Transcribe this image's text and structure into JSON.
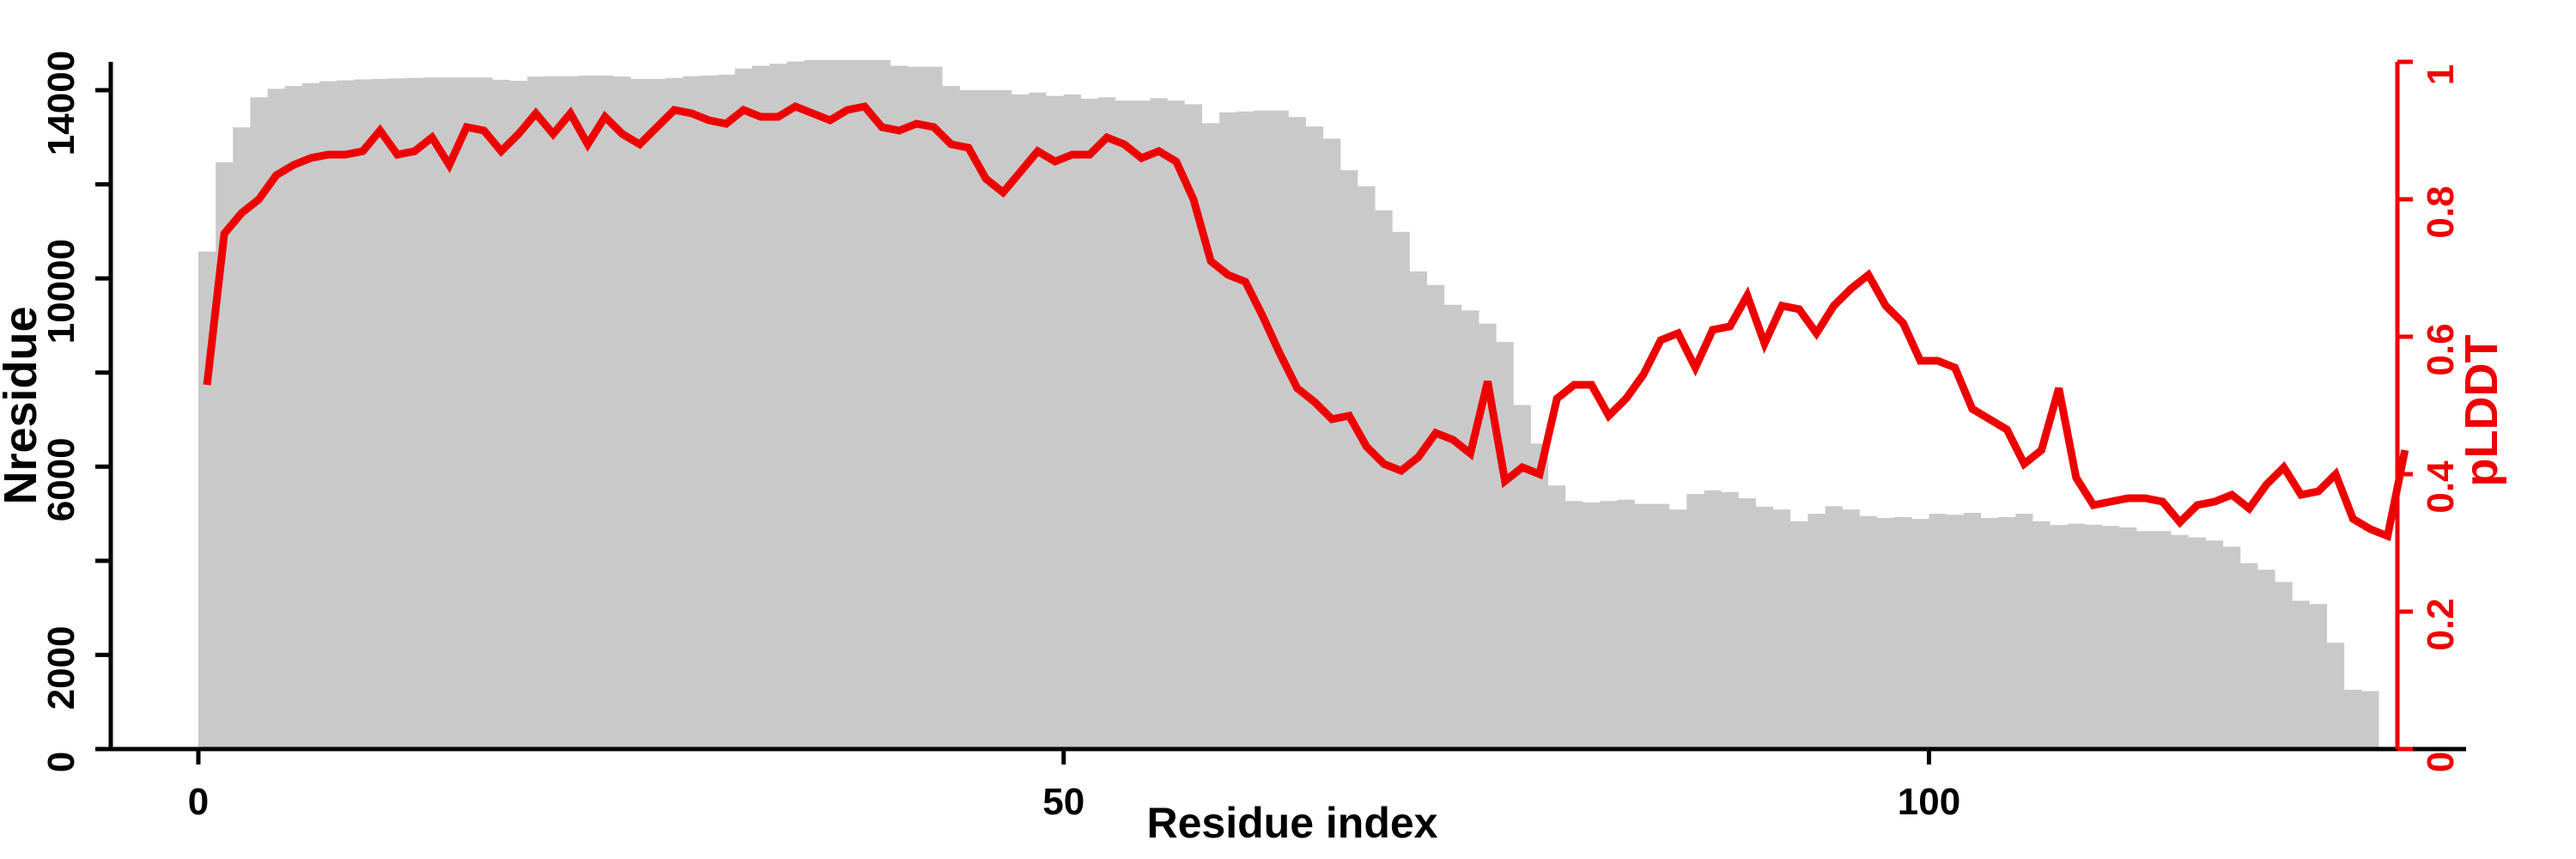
{
  "figure": {
    "background_color": "#ffffff",
    "axis_color": "#000000",
    "bar_color": "#c9c9c9",
    "line_color": "#ee0000"
  },
  "chart_data": {
    "type": "bar",
    "subtype": "dual-axis bar+line profile plot",
    "title": "",
    "xlabel": "Residue index",
    "ylabel_left": "Nresidue",
    "ylabel_right": "pLDDT",
    "x_is_index": true,
    "xlim": [
      0,
      128
    ],
    "x_ticks": [
      0,
      50,
      100
    ],
    "x_tick_labels": [
      "0",
      "50",
      "100"
    ],
    "ylim_left": [
      0,
      14650
    ],
    "y_ticks_left_all": [
      0,
      2000,
      4000,
      6000,
      8000,
      10000,
      12000,
      14000
    ],
    "y_ticks_left_labeled": [
      0,
      2000,
      6000,
      10000,
      14000
    ],
    "y_tick_labels_left": [
      "0",
      "2000",
      "6000",
      "10000",
      "14000"
    ],
    "ylim_right": [
      0,
      1
    ],
    "y_ticks_right": [
      0,
      0.2,
      0.4,
      0.6,
      0.8,
      1
    ],
    "y_tick_labels_right": [
      "0",
      "0.2",
      "0.4",
      "0.6",
      "0.8",
      "1"
    ],
    "grid": false,
    "legend": "none",
    "series": [
      {
        "name": "Nresidue",
        "type": "bar",
        "axis": "left",
        "color": "#c9c9c9",
        "values": [
          10570,
          12470,
          13210,
          13850,
          14030,
          14090,
          14150,
          14190,
          14210,
          14230,
          14240,
          14250,
          14260,
          14270,
          14270,
          14270,
          14270,
          14220,
          14200,
          14290,
          14300,
          14300,
          14310,
          14310,
          14290,
          14240,
          14240,
          14260,
          14300,
          14310,
          14330,
          14460,
          14520,
          14560,
          14610,
          14640,
          14640,
          14640,
          14640,
          14640,
          14520,
          14500,
          14500,
          14090,
          14000,
          14000,
          14000,
          13910,
          13950,
          13880,
          13910,
          13820,
          13850,
          13780,
          13780,
          13830,
          13780,
          13700,
          13300,
          13530,
          13550,
          13570,
          13570,
          13430,
          13230,
          12970,
          12300,
          11960,
          11450,
          10990,
          10150,
          9860,
          9440,
          9320,
          9040,
          8650,
          7310,
          6490,
          5600,
          5270,
          5240,
          5270,
          5300,
          5210,
          5210,
          5090,
          5420,
          5500,
          5460,
          5330,
          5150,
          5090,
          4840,
          5000,
          5160,
          5090,
          4950,
          4910,
          4930,
          4890,
          5000,
          4980,
          5020,
          4910,
          4930,
          5000,
          4840,
          4760,
          4790,
          4770,
          4740,
          4710,
          4630,
          4630,
          4550,
          4500,
          4430,
          4300,
          3950,
          3810,
          3550,
          3150,
          3080,
          2260,
          1260,
          1230
        ]
      },
      {
        "name": "pLDDT",
        "type": "line",
        "axis": "right",
        "color": "#ee0000",
        "values": [
          0.53,
          0.75,
          0.78,
          0.8,
          0.835,
          0.85,
          0.86,
          0.865,
          0.865,
          0.87,
          0.9,
          0.865,
          0.87,
          0.89,
          0.85,
          0.905,
          0.9,
          0.87,
          0.895,
          0.925,
          0.895,
          0.925,
          0.88,
          0.92,
          0.895,
          0.88,
          0.905,
          0.93,
          0.925,
          0.915,
          0.91,
          0.93,
          0.92,
          0.92,
          0.935,
          0.925,
          0.915,
          0.93,
          0.935,
          0.905,
          0.9,
          0.91,
          0.905,
          0.88,
          0.875,
          0.83,
          0.81,
          0.84,
          0.87,
          0.855,
          0.865,
          0.865,
          0.89,
          0.88,
          0.86,
          0.87,
          0.855,
          0.8,
          0.71,
          0.69,
          0.68,
          0.63,
          0.575,
          0.525,
          0.505,
          0.48,
          0.485,
          0.44,
          0.415,
          0.405,
          0.425,
          0.46,
          0.45,
          0.43,
          0.535,
          0.39,
          0.41,
          0.4,
          0.51,
          0.53,
          0.53,
          0.485,
          0.51,
          0.545,
          0.595,
          0.605,
          0.555,
          0.61,
          0.615,
          0.66,
          0.59,
          0.645,
          0.64,
          0.605,
          0.645,
          0.67,
          0.69,
          0.645,
          0.62,
          0.565,
          0.565,
          0.555,
          0.495,
          0.48,
          0.465,
          0.415,
          0.435,
          0.525,
          0.395,
          0.355,
          0.36,
          0.365,
          0.365,
          0.36,
          0.33,
          0.355,
          0.36,
          0.37,
          0.35,
          0.385,
          0.41,
          0.37,
          0.375,
          0.4,
          0.335,
          0.32,
          0.31,
          0.435
        ]
      }
    ]
  }
}
